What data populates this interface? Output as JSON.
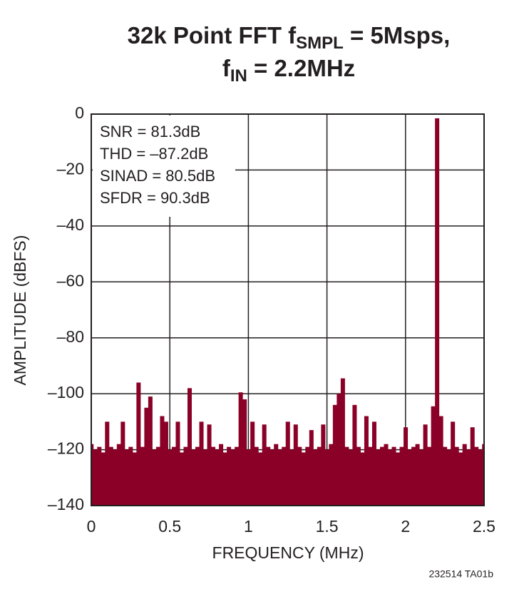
{
  "chart_data": {
    "type": "bar",
    "title": [
      "32k Point FFT f",
      "SMPL",
      " = 5Msps,"
    ],
    "title_line2": [
      "f",
      "IN",
      " = 2.2MHz"
    ],
    "xlabel": "FREQUENCY (MHz)",
    "ylabel": "AMPLITUDE (dBFS)",
    "annotations": [
      "SNR = 81.3dB",
      "THD = –87.2dB",
      "SINAD = 80.5dB",
      "SFDR = 90.3dB"
    ],
    "note": "232514 TA01b",
    "color": "#8b0027",
    "grid": true,
    "xlim": [
      0,
      2.5
    ],
    "ylim": [
      -140,
      0
    ],
    "xticks": [
      0,
      0.5,
      1,
      1.5,
      2,
      2.5
    ],
    "yticks": [
      {
        "value": 0,
        "label": "0"
      },
      {
        "value": -20,
        "label": "–20"
      },
      {
        "value": -40,
        "label": "–40"
      },
      {
        "value": -60,
        "label": "–60"
      },
      {
        "value": -80,
        "label": "–80"
      },
      {
        "value": -100,
        "label": "–100"
      },
      {
        "value": -120,
        "label": "–120"
      },
      {
        "value": -140,
        "label": "–140"
      }
    ],
    "x": [
      0,
      0.025,
      0.05,
      0.075,
      0.1,
      0.125,
      0.15,
      0.175,
      0.2,
      0.225,
      0.25,
      0.275,
      0.3,
      0.325,
      0.35,
      0.375,
      0.4,
      0.425,
      0.45,
      0.475,
      0.5,
      0.525,
      0.55,
      0.575,
      0.6,
      0.625,
      0.65,
      0.675,
      0.7,
      0.725,
      0.75,
      0.775,
      0.8,
      0.825,
      0.85,
      0.875,
      0.9,
      0.925,
      0.95,
      0.975,
      1,
      1.025,
      1.05,
      1.075,
      1.1,
      1.125,
      1.15,
      1.175,
      1.2,
      1.225,
      1.25,
      1.275,
      1.3,
      1.325,
      1.35,
      1.375,
      1.4,
      1.425,
      1.45,
      1.475,
      1.5,
      1.525,
      1.55,
      1.575,
      1.6,
      1.625,
      1.65,
      1.675,
      1.7,
      1.725,
      1.75,
      1.775,
      1.8,
      1.825,
      1.85,
      1.875,
      1.9,
      1.925,
      1.95,
      1.975,
      2,
      2.025,
      2.05,
      2.075,
      2.1,
      2.125,
      2.15,
      2.175,
      2.2,
      2.225,
      2.25,
      2.275,
      2.3,
      2.325,
      2.35,
      2.375,
      2.4,
      2.425,
      2.45,
      2.475,
      2.5
    ],
    "values": [
      -118,
      -120,
      -119,
      -121,
      -110,
      -119,
      -120,
      -118,
      -110,
      -120,
      -119,
      -121,
      -96,
      -119,
      -105,
      -101,
      -120,
      -119,
      -108,
      -110,
      -120,
      -119,
      -110,
      -121,
      -119,
      -98,
      -120,
      -119,
      -110,
      -120,
      -111,
      -119,
      -120,
      -118,
      -121,
      -119,
      -120,
      -119,
      -99.5,
      -102,
      -120,
      -110,
      -119,
      -121,
      -111,
      -119,
      -120,
      -118,
      -120,
      -119,
      -110,
      -120,
      -111,
      -119,
      -121,
      -119,
      -113,
      -120,
      -119,
      -111,
      -120,
      -118,
      -104,
      -100,
      -94.5,
      -119,
      -120,
      -104,
      -119,
      -121,
      -108,
      -119,
      -110,
      -120,
      -119,
      -118,
      -120,
      -119,
      -121,
      -119,
      -112,
      -120,
      -119,
      -118,
      -120,
      -111,
      -119,
      -104.5,
      -1.5,
      -108,
      -119,
      -120,
      -110,
      -119,
      -121,
      -118,
      -120,
      -112,
      -119,
      -120,
      -118
    ]
  }
}
